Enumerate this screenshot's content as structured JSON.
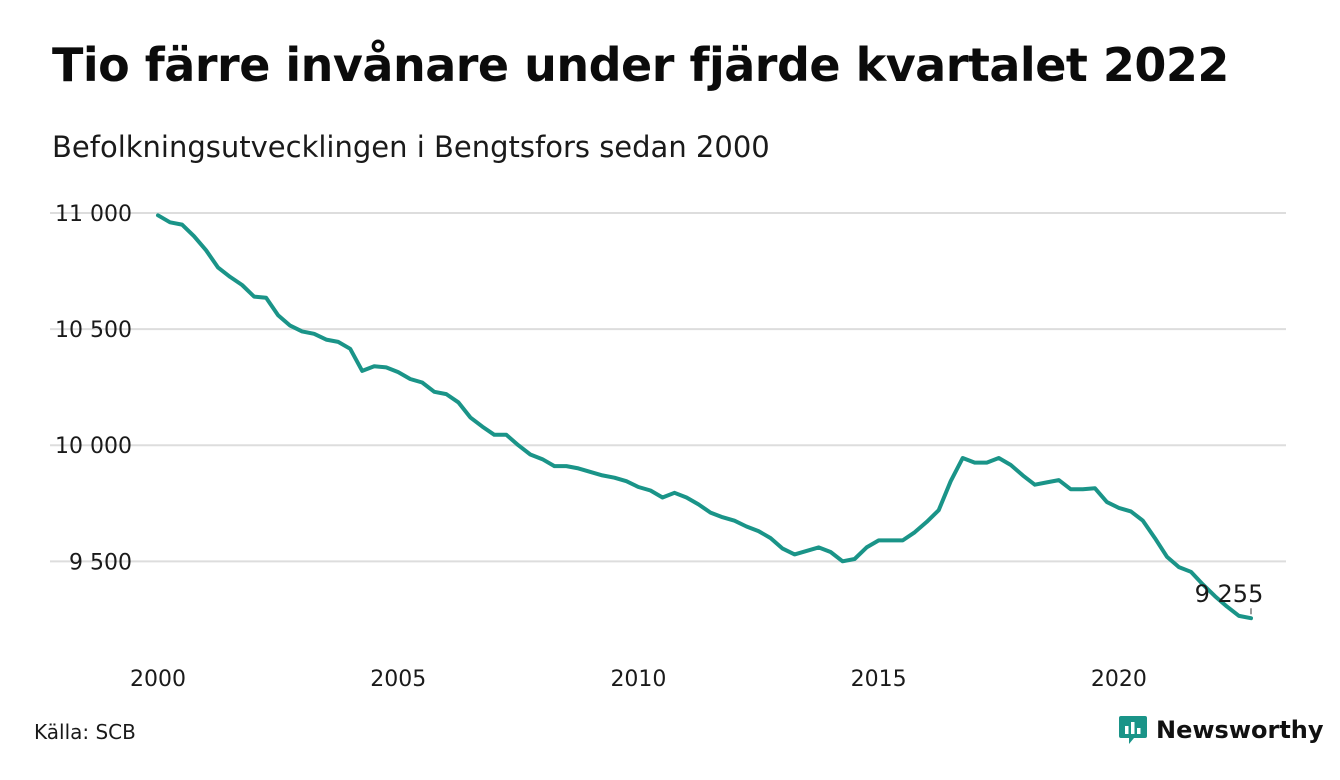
{
  "header": {
    "title": "Tio färre invånare under fjärde kvartalet 2022",
    "subtitle": "Befolkningsutvecklingen i Bengtsfors sedan 2000"
  },
  "footer": {
    "source": "Källa: SCB",
    "brand": "Newsworthy"
  },
  "colors": {
    "line": "#1a9488",
    "grid": "#dddddd",
    "brand": "#1a9488"
  },
  "chart_data": {
    "type": "line",
    "title": "Tio färre invånare under fjärde kvartalet 2022",
    "subtitle": "Befolkningsutvecklingen i Bengtsfors sedan 2000",
    "xlabel": "",
    "ylabel": "",
    "xlim": [
      2000,
      2022.75
    ],
    "ylim": [
      9200,
      11000
    ],
    "x_ticks": [
      {
        "value": 2000,
        "label": "2000"
      },
      {
        "value": 2005,
        "label": "2005"
      },
      {
        "value": 2010,
        "label": "2010"
      },
      {
        "value": 2015,
        "label": "2015"
      },
      {
        "value": 2020,
        "label": "2020"
      }
    ],
    "y_ticks": [
      {
        "value": 11000,
        "label": "11 000"
      },
      {
        "value": 10500,
        "label": "10 500"
      },
      {
        "value": 10000,
        "label": "10 000"
      },
      {
        "value": 9500,
        "label": "9 500"
      }
    ],
    "grid": true,
    "annotation": {
      "label": "9 255",
      "x": 2022.75,
      "y": 9255
    },
    "series": [
      {
        "x": [
          2000,
          2000.25,
          2000.5,
          2000.75,
          2001,
          2001.25,
          2001.5,
          2001.75,
          2002,
          2002.25,
          2002.5,
          2002.75,
          2003,
          2003.25,
          2003.5,
          2003.75,
          2004,
          2004.25,
          2004.5,
          2004.75,
          2005,
          2005.25,
          2005.5,
          2005.75,
          2006,
          2006.25,
          2006.5,
          2006.75,
          2007,
          2007.25,
          2007.5,
          2007.75,
          2008,
          2008.25,
          2008.5,
          2008.75,
          2009,
          2009.25,
          2009.5,
          2009.75,
          2010,
          2010.25,
          2010.5,
          2010.75,
          2011,
          2011.25,
          2011.5,
          2011.75,
          2012,
          2012.25,
          2012.5,
          2012.75,
          2013,
          2013.25,
          2013.5,
          2013.75,
          2014,
          2014.25,
          2014.5,
          2014.75,
          2015,
          2015.25,
          2015.5,
          2015.75,
          2016,
          2016.25,
          2016.5,
          2016.75,
          2017,
          2017.25,
          2017.5,
          2017.75,
          2018,
          2018.25,
          2018.5,
          2018.75,
          2019,
          2019.25,
          2019.5,
          2019.75,
          2020,
          2020.25,
          2020.5,
          2020.75,
          2021,
          2021.25,
          2021.5,
          2021.75,
          2022,
          2022.25,
          2022.5,
          2022.75
        ],
        "values": [
          10990,
          10960,
          10950,
          10900,
          10840,
          10765,
          10725,
          10690,
          10640,
          10635,
          10560,
          10515,
          10490,
          10480,
          10455,
          10445,
          10415,
          10320,
          10340,
          10335,
          10315,
          10285,
          10270,
          10230,
          10220,
          10185,
          10120,
          10080,
          10045,
          10045,
          10000,
          9960,
          9940,
          9910,
          9910,
          9900,
          9885,
          9870,
          9860,
          9845,
          9820,
          9805,
          9775,
          9795,
          9775,
          9745,
          9710,
          9690,
          9675,
          9650,
          9630,
          9600,
          9555,
          9530,
          9545,
          9560,
          9540,
          9500,
          9510,
          9560,
          9590,
          9590,
          9590,
          9625,
          9670,
          9720,
          9845,
          9945,
          9925,
          9925,
          9945,
          9915,
          9870,
          9830,
          9840,
          9850,
          9810,
          9810,
          9815,
          9755,
          9730,
          9715,
          9675,
          9600,
          9520,
          9475,
          9455,
          9400,
          9350,
          9305,
          9265,
          9255
        ]
      }
    ]
  }
}
